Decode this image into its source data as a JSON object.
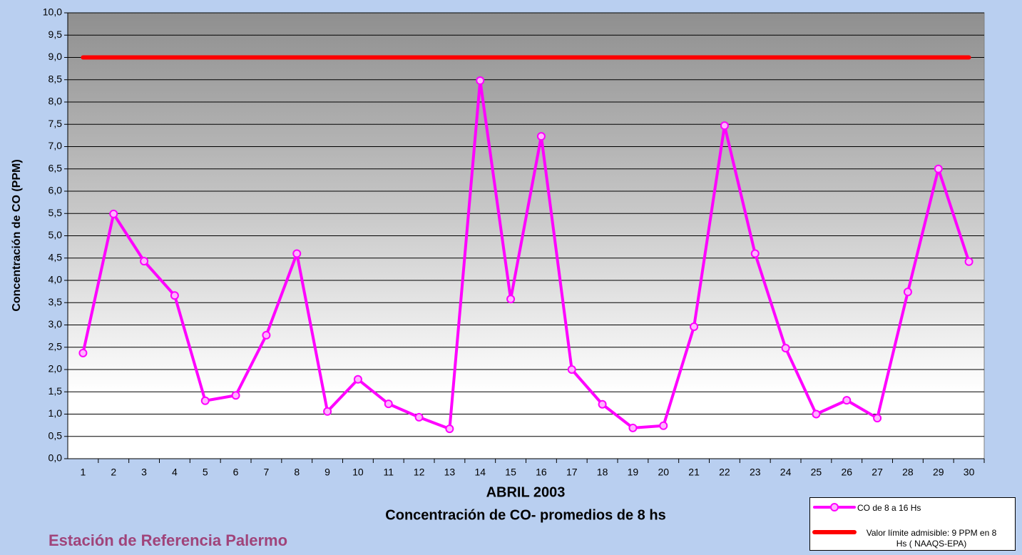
{
  "chart_data": {
    "type": "line",
    "subtitle": "Concentración de CO- promedios de 8 hs",
    "x_label": "ABRIL 2003",
    "y_label": "Concentración de CO (PPM)",
    "caption": "Estación de Referencia Palermo",
    "categories": [
      "1",
      "2",
      "3",
      "4",
      "5",
      "6",
      "7",
      "8",
      "9",
      "10",
      "11",
      "12",
      "13",
      "14",
      "15",
      "16",
      "17",
      "18",
      "19",
      "20",
      "21",
      "22",
      "23",
      "24",
      "25",
      "26",
      "27",
      "28",
      "29",
      "30"
    ],
    "series": [
      {
        "name": "CO de 8 a 16 Hs",
        "color": "#ff00ff",
        "marker": "circle",
        "values": [
          2.37,
          5.49,
          4.43,
          3.66,
          1.3,
          1.42,
          2.77,
          4.6,
          1.06,
          1.78,
          1.23,
          0.93,
          0.67,
          8.48,
          3.58,
          7.23,
          2.0,
          1.22,
          0.69,
          0.74,
          2.96,
          7.47,
          4.6,
          2.48,
          1.0,
          1.31,
          0.91,
          3.74,
          6.5,
          4.42
        ]
      },
      {
        "name": "Valor límite admisible: 9 PPM en 8 Hs ( NAAQS-EPA)",
        "color": "#ff0000",
        "values": [
          9,
          9,
          9,
          9,
          9,
          9,
          9,
          9,
          9,
          9,
          9,
          9,
          9,
          9,
          9,
          9,
          9,
          9,
          9,
          9,
          9,
          9,
          9,
          9,
          9,
          9,
          9,
          9,
          9,
          9
        ]
      }
    ],
    "ylim": [
      0,
      10
    ],
    "yticks": [
      {
        "value": 0,
        "label": "0,0"
      },
      {
        "value": 0.5,
        "label": "0,5"
      },
      {
        "value": 1,
        "label": "1,0"
      },
      {
        "value": 1.5,
        "label": "1,5"
      },
      {
        "value": 2,
        "label": "2,0"
      },
      {
        "value": 2.5,
        "label": "2,5"
      },
      {
        "value": 3,
        "label": "3,0"
      },
      {
        "value": 3.5,
        "label": "3,5"
      },
      {
        "value": 4,
        "label": "4,0"
      },
      {
        "value": 4.5,
        "label": "4,5"
      },
      {
        "value": 5,
        "label": "5,0"
      },
      {
        "value": 5.5,
        "label": "5,5"
      },
      {
        "value": 6,
        "label": "6,0"
      },
      {
        "value": 6.5,
        "label": "6,5"
      },
      {
        "value": 7,
        "label": "7,0"
      },
      {
        "value": 7.5,
        "label": "7,5"
      },
      {
        "value": 8,
        "label": "8,0"
      },
      {
        "value": 8.5,
        "label": "8,5"
      },
      {
        "value": 9,
        "label": "9,0"
      },
      {
        "value": 9.5,
        "label": "9,5"
      },
      {
        "value": 10,
        "label": "10,0"
      }
    ],
    "grid": true
  }
}
